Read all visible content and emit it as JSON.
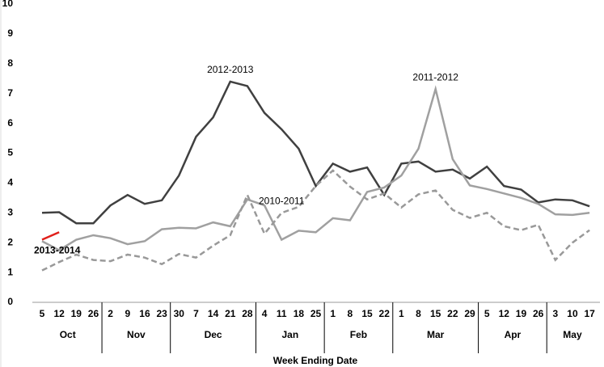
{
  "chart_data": {
    "type": "line",
    "x_label": "Week Ending Date",
    "categories": [
      "5",
      "12",
      "19",
      "26",
      "2",
      "9",
      "16",
      "23",
      "30",
      "7",
      "14",
      "21",
      "28",
      "4",
      "11",
      "18",
      "25",
      "1",
      "8",
      "15",
      "22",
      "1",
      "8",
      "15",
      "22",
      "29",
      "5",
      "12",
      "19",
      "26",
      "3",
      "10",
      "17"
    ],
    "month_groups": [
      "Oct",
      "Nov",
      "Dec",
      "Jan",
      "Feb",
      "Mar",
      "Apr",
      "May"
    ],
    "ylim": [
      0,
      10
    ],
    "yticks": [
      0,
      1,
      2,
      3,
      4,
      5,
      6,
      7,
      8,
      9,
      10
    ],
    "grid": false,
    "series": [
      {
        "name": "2012-2013",
        "color": "#404040",
        "dash": false,
        "values": [
          3.0,
          3.02,
          2.65,
          2.65,
          3.25,
          3.6,
          3.3,
          3.42,
          4.25,
          5.55,
          6.2,
          7.4,
          7.25,
          6.35,
          5.8,
          5.15,
          3.9,
          4.65,
          4.38,
          4.52,
          3.6,
          4.65,
          4.72,
          4.38,
          4.45,
          4.15,
          4.55,
          3.9,
          3.78,
          3.35,
          3.45,
          3.42,
          3.22
        ]
      },
      {
        "name": "2011-2012",
        "color": "#a0a0a0",
        "dash": false,
        "values": [
          2.05,
          1.75,
          2.1,
          2.25,
          2.15,
          1.95,
          2.05,
          2.45,
          2.5,
          2.48,
          2.68,
          2.55,
          3.45,
          3.25,
          2.1,
          2.4,
          2.35,
          2.82,
          2.75,
          3.7,
          3.85,
          4.25,
          5.15,
          7.15,
          4.8,
          3.92,
          3.8,
          3.65,
          3.5,
          3.3,
          2.95,
          2.93,
          3.0
        ]
      },
      {
        "name": "2010-2011",
        "color": "#999999",
        "dash": true,
        "values": [
          1.07,
          1.35,
          1.6,
          1.42,
          1.38,
          1.6,
          1.5,
          1.28,
          1.62,
          1.5,
          1.9,
          2.25,
          3.6,
          2.3,
          3.0,
          3.2,
          3.9,
          4.42,
          3.88,
          3.45,
          3.65,
          3.18,
          3.62,
          3.75,
          3.1,
          2.83,
          3.0,
          2.55,
          2.42,
          2.6,
          1.42,
          2.0,
          2.42
        ]
      },
      {
        "name": "2013-2014",
        "color": "#e0201b",
        "dash": false,
        "values": [
          2.1,
          2.35,
          null,
          null,
          null,
          null,
          null,
          null,
          null,
          null,
          null,
          null,
          null,
          null,
          null,
          null,
          null,
          null,
          null,
          null,
          null,
          null,
          null,
          null,
          null,
          null,
          null,
          null,
          null,
          null,
          null,
          null,
          null
        ]
      }
    ]
  }
}
